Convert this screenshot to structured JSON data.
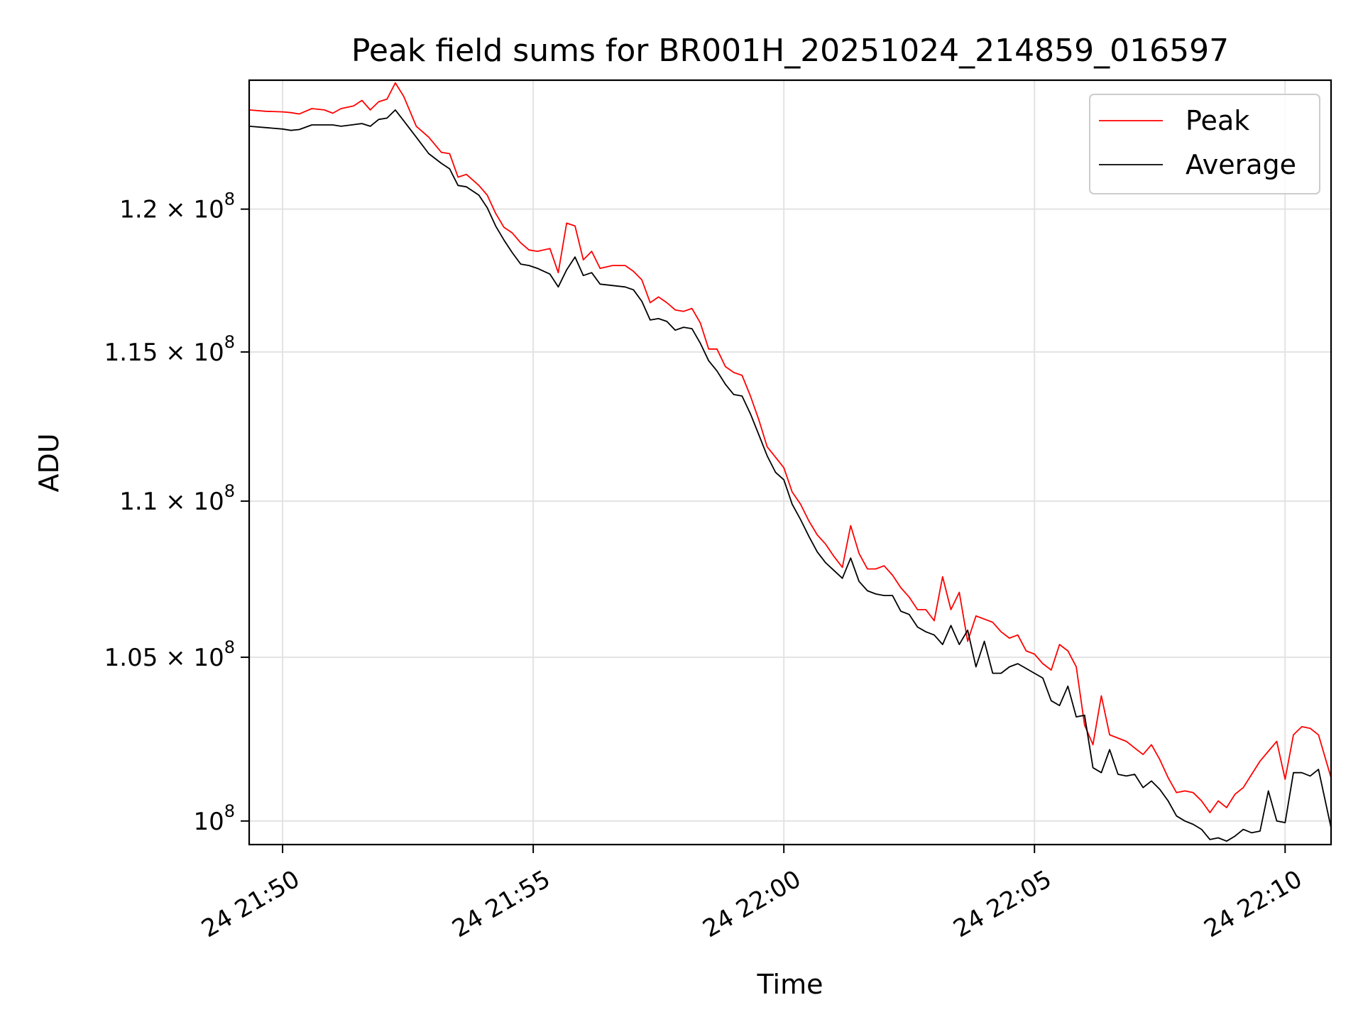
{
  "chart_data": {
    "type": "line",
    "title": "Peak field sums for BR001H_20251024_214859_016597",
    "xlabel": "Time",
    "ylabel": "ADU",
    "y_scale": "log",
    "xlim": [
      "24 21:49:20",
      "24 22:10:55"
    ],
    "ylim": [
      99300000,
      124700000
    ],
    "grid": true,
    "legend_position": "top-right",
    "x_ticks": [
      {
        "value": "24 21:50:00",
        "label": "24 21:50"
      },
      {
        "value": "24 21:55:00",
        "label": "24 21:55"
      },
      {
        "value": "24 22:00:00",
        "label": "24 22:00"
      },
      {
        "value": "24 22:05:00",
        "label": "24 22:05"
      },
      {
        "value": "24 22:10:00",
        "label": "24 22:10"
      }
    ],
    "y_ticks": [
      {
        "value": 100000000,
        "mantissa": "10",
        "exponent": "8"
      },
      {
        "value": 105000000,
        "mantissa": "1.05 × 10",
        "exponent": "8"
      },
      {
        "value": 110000000,
        "mantissa": "1.1 × 10",
        "exponent": "8"
      },
      {
        "value": 115000000,
        "mantissa": "1.15 × 10",
        "exponent": "8"
      },
      {
        "value": 120000000,
        "mantissa": "1.2 × 10",
        "exponent": "8"
      }
    ],
    "series": [
      {
        "name": "Peak",
        "color": "#ff0000",
        "points": [
          [
            "24 21:49:20",
            123600000
          ],
          [
            "24 21:49:40",
            123550000
          ],
          [
            "24 21:50:00",
            123530000
          ],
          [
            "24 21:50:10",
            123500000
          ],
          [
            "24 21:50:20",
            123450000
          ],
          [
            "24 21:50:35",
            123650000
          ],
          [
            "24 21:50:50",
            123600000
          ],
          [
            "24 21:51:00",
            123480000
          ],
          [
            "24 21:51:10",
            123650000
          ],
          [
            "24 21:51:25",
            123750000
          ],
          [
            "24 21:51:35",
            123950000
          ],
          [
            "24 21:51:45",
            123600000
          ],
          [
            "24 21:51:55",
            123900000
          ],
          [
            "24 21:52:05",
            124000000
          ],
          [
            "24 21:52:15",
            124600000
          ],
          [
            "24 21:52:25",
            124100000
          ],
          [
            "24 21:52:40",
            123000000
          ],
          [
            "24 21:52:55",
            122600000
          ],
          [
            "24 21:53:10",
            122050000
          ],
          [
            "24 21:53:20",
            122000000
          ],
          [
            "24 21:53:30",
            121150000
          ],
          [
            "24 21:53:40",
            121250000
          ],
          [
            "24 21:53:55",
            120850000
          ],
          [
            "24 21:54:05",
            120500000
          ],
          [
            "24 21:54:15",
            119850000
          ],
          [
            "24 21:54:25",
            119350000
          ],
          [
            "24 21:54:35",
            119150000
          ],
          [
            "24 21:54:45",
            118800000
          ],
          [
            "24 21:54:55",
            118550000
          ],
          [
            "24 21:55:05",
            118500000
          ],
          [
            "24 21:55:20",
            118600000
          ],
          [
            "24 21:55:30",
            117750000
          ],
          [
            "24 21:55:40",
            119500000
          ],
          [
            "24 21:55:50",
            119400000
          ],
          [
            "24 21:56:00",
            118200000
          ],
          [
            "24 21:56:10",
            118500000
          ],
          [
            "24 21:56:20",
            117900000
          ],
          [
            "24 21:56:35",
            118000000
          ],
          [
            "24 21:56:50",
            118000000
          ],
          [
            "24 21:57:00",
            117800000
          ],
          [
            "24 21:57:10",
            117500000
          ],
          [
            "24 21:57:20",
            116700000
          ],
          [
            "24 21:57:30",
            116900000
          ],
          [
            "24 21:57:40",
            116700000
          ],
          [
            "24 21:57:50",
            116450000
          ],
          [
            "24 21:58:00",
            116400000
          ],
          [
            "24 21:58:10",
            116500000
          ],
          [
            "24 21:58:20",
            116000000
          ],
          [
            "24 21:58:30",
            115100000
          ],
          [
            "24 21:58:40",
            115100000
          ],
          [
            "24 21:58:50",
            114500000
          ],
          [
            "24 21:59:00",
            114300000
          ],
          [
            "24 21:59:10",
            114200000
          ],
          [
            "24 21:59:20",
            113500000
          ],
          [
            "24 21:59:30",
            112700000
          ],
          [
            "24 21:59:40",
            111800000
          ],
          [
            "24 21:59:50",
            111450000
          ],
          [
            "24 22:00:00",
            111100000
          ],
          [
            "24 22:00:10",
            110300000
          ],
          [
            "24 22:00:20",
            109900000
          ],
          [
            "24 22:00:30",
            109350000
          ],
          [
            "24 22:00:40",
            108900000
          ],
          [
            "24 22:00:50",
            108600000
          ],
          [
            "24 22:01:00",
            108200000
          ],
          [
            "24 22:01:10",
            107850000
          ],
          [
            "24 22:01:20",
            109200000
          ],
          [
            "24 22:01:30",
            108300000
          ],
          [
            "24 22:01:40",
            107800000
          ],
          [
            "24 22:01:50",
            107800000
          ],
          [
            "24 22:02:00",
            107900000
          ],
          [
            "24 22:02:10",
            107600000
          ],
          [
            "24 22:02:20",
            107200000
          ],
          [
            "24 22:02:30",
            106900000
          ],
          [
            "24 22:02:40",
            106500000
          ],
          [
            "24 22:02:50",
            106500000
          ],
          [
            "24 22:03:00",
            106150000
          ],
          [
            "24 22:03:10",
            107550000
          ],
          [
            "24 22:03:20",
            106500000
          ],
          [
            "24 22:03:30",
            107050000
          ],
          [
            "24 22:03:40",
            105500000
          ],
          [
            "24 22:03:50",
            106300000
          ],
          [
            "24 22:04:00",
            106200000
          ],
          [
            "24 22:04:10",
            106100000
          ],
          [
            "24 22:04:20",
            105800000
          ],
          [
            "24 22:04:30",
            105600000
          ],
          [
            "24 22:04:40",
            105700000
          ],
          [
            "24 22:04:50",
            105200000
          ],
          [
            "24 22:05:00",
            105100000
          ],
          [
            "24 22:05:10",
            104800000
          ],
          [
            "24 22:05:20",
            104600000
          ],
          [
            "24 22:05:30",
            105400000
          ],
          [
            "24 22:05:40",
            105200000
          ],
          [
            "24 22:05:50",
            104700000
          ],
          [
            "24 22:06:00",
            102900000
          ],
          [
            "24 22:06:10",
            102300000
          ],
          [
            "24 22:06:20",
            103800000
          ],
          [
            "24 22:06:30",
            102600000
          ],
          [
            "24 22:06:40",
            102500000
          ],
          [
            "24 22:06:50",
            102400000
          ],
          [
            "24 22:07:00",
            102200000
          ],
          [
            "24 22:07:10",
            102000000
          ],
          [
            "24 22:07:20",
            102300000
          ],
          [
            "24 22:07:30",
            101850000
          ],
          [
            "24 22:07:40",
            101300000
          ],
          [
            "24 22:07:50",
            100850000
          ],
          [
            "24 22:08:00",
            100900000
          ],
          [
            "24 22:08:10",
            100850000
          ],
          [
            "24 22:08:20",
            100600000
          ],
          [
            "24 22:08:30",
            100250000
          ],
          [
            "24 22:08:40",
            100600000
          ],
          [
            "24 22:08:50",
            100400000
          ],
          [
            "24 22:09:00",
            100800000
          ],
          [
            "24 22:09:10",
            101000000
          ],
          [
            "24 22:09:20",
            101400000
          ],
          [
            "24 22:09:30",
            101800000
          ],
          [
            "24 22:09:40",
            102100000
          ],
          [
            "24 22:09:50",
            102400000
          ],
          [
            "24 22:10:00",
            101250000
          ],
          [
            "24 22:10:10",
            102600000
          ],
          [
            "24 22:10:20",
            102850000
          ],
          [
            "24 22:10:30",
            102800000
          ],
          [
            "24 22:10:40",
            102600000
          ],
          [
            "24 22:10:55",
            101300000
          ]
        ]
      },
      {
        "name": "Average",
        "color": "#000000",
        "points": [
          [
            "24 21:49:20",
            123000000
          ],
          [
            "24 21:49:40",
            122950000
          ],
          [
            "24 21:50:00",
            122900000
          ],
          [
            "24 21:50:10",
            122850000
          ],
          [
            "24 21:50:20",
            122880000
          ],
          [
            "24 21:50:35",
            123050000
          ],
          [
            "24 21:50:50",
            123050000
          ],
          [
            "24 21:51:00",
            123050000
          ],
          [
            "24 21:51:10",
            123000000
          ],
          [
            "24 21:51:25",
            123060000
          ],
          [
            "24 21:51:35",
            123100000
          ],
          [
            "24 21:51:45",
            123000000
          ],
          [
            "24 21:51:55",
            123250000
          ],
          [
            "24 21:52:05",
            123300000
          ],
          [
            "24 21:52:15",
            123600000
          ],
          [
            "24 21:52:25",
            123200000
          ],
          [
            "24 21:52:40",
            122600000
          ],
          [
            "24 21:52:55",
            122000000
          ],
          [
            "24 21:53:10",
            121650000
          ],
          [
            "24 21:53:20",
            121450000
          ],
          [
            "24 21:53:30",
            120850000
          ],
          [
            "24 21:53:40",
            120800000
          ],
          [
            "24 21:53:55",
            120500000
          ],
          [
            "24 21:54:05",
            120050000
          ],
          [
            "24 21:54:15",
            119400000
          ],
          [
            "24 21:54:25",
            118900000
          ],
          [
            "24 21:54:35",
            118450000
          ],
          [
            "24 21:54:45",
            118050000
          ],
          [
            "24 21:54:55",
            118000000
          ],
          [
            "24 21:55:05",
            117900000
          ],
          [
            "24 21:55:20",
            117700000
          ],
          [
            "24 21:55:30",
            117250000
          ],
          [
            "24 21:55:40",
            117850000
          ],
          [
            "24 21:55:50",
            118300000
          ],
          [
            "24 21:56:00",
            117650000
          ],
          [
            "24 21:56:10",
            117750000
          ],
          [
            "24 21:56:20",
            117350000
          ],
          [
            "24 21:56:35",
            117300000
          ],
          [
            "24 21:56:50",
            117250000
          ],
          [
            "24 21:57:00",
            117150000
          ],
          [
            "24 21:57:10",
            116750000
          ],
          [
            "24 21:57:20",
            116100000
          ],
          [
            "24 21:57:30",
            116150000
          ],
          [
            "24 21:57:40",
            116050000
          ],
          [
            "24 21:57:50",
            115750000
          ],
          [
            "24 21:58:00",
            115850000
          ],
          [
            "24 21:58:10",
            115800000
          ],
          [
            "24 21:58:20",
            115300000
          ],
          [
            "24 21:58:30",
            114700000
          ],
          [
            "24 21:58:40",
            114350000
          ],
          [
            "24 21:58:50",
            113900000
          ],
          [
            "24 21:59:00",
            113550000
          ],
          [
            "24 21:59:10",
            113500000
          ],
          [
            "24 21:59:20",
            112900000
          ],
          [
            "24 21:59:30",
            112200000
          ],
          [
            "24 21:59:40",
            111500000
          ],
          [
            "24 21:59:50",
            110950000
          ],
          [
            "24 22:00:00",
            110700000
          ],
          [
            "24 22:00:10",
            109900000
          ],
          [
            "24 22:00:20",
            109400000
          ],
          [
            "24 22:00:30",
            108850000
          ],
          [
            "24 22:00:40",
            108350000
          ],
          [
            "24 22:00:50",
            108000000
          ],
          [
            "24 22:01:00",
            107750000
          ],
          [
            "24 22:01:10",
            107500000
          ],
          [
            "24 22:01:20",
            108150000
          ],
          [
            "24 22:01:30",
            107400000
          ],
          [
            "24 22:01:40",
            107100000
          ],
          [
            "24 22:01:50",
            107000000
          ],
          [
            "24 22:02:00",
            106950000
          ],
          [
            "24 22:02:10",
            106950000
          ],
          [
            "24 22:02:20",
            106450000
          ],
          [
            "24 22:02:30",
            106350000
          ],
          [
            "24 22:02:40",
            105950000
          ],
          [
            "24 22:02:50",
            105800000
          ],
          [
            "24 22:03:00",
            105700000
          ],
          [
            "24 22:03:10",
            105400000
          ],
          [
            "24 22:03:20",
            106000000
          ],
          [
            "24 22:03:30",
            105400000
          ],
          [
            "24 22:03:40",
            105850000
          ],
          [
            "24 22:03:50",
            104700000
          ],
          [
            "24 22:04:00",
            105500000
          ],
          [
            "24 22:04:10",
            104500000
          ],
          [
            "24 22:04:20",
            104500000
          ],
          [
            "24 22:04:30",
            104700000
          ],
          [
            "24 22:04:40",
            104800000
          ],
          [
            "24 22:04:50",
            104650000
          ],
          [
            "24 22:05:00",
            104500000
          ],
          [
            "24 22:05:10",
            104350000
          ],
          [
            "24 22:05:20",
            103650000
          ],
          [
            "24 22:05:30",
            103500000
          ],
          [
            "24 22:05:40",
            104100000
          ],
          [
            "24 22:05:50",
            103150000
          ],
          [
            "24 22:06:00",
            103200000
          ],
          [
            "24 22:06:10",
            101600000
          ],
          [
            "24 22:06:20",
            101450000
          ],
          [
            "24 22:06:30",
            102150000
          ],
          [
            "24 22:06:40",
            101400000
          ],
          [
            "24 22:06:50",
            101350000
          ],
          [
            "24 22:07:00",
            101400000
          ],
          [
            "24 22:07:10",
            101000000
          ],
          [
            "24 22:07:20",
            101200000
          ],
          [
            "24 22:07:30",
            100950000
          ],
          [
            "24 22:07:40",
            100600000
          ],
          [
            "24 22:07:50",
            100150000
          ],
          [
            "24 22:08:00",
            100000000
          ],
          [
            "24 22:08:10",
            99900000
          ],
          [
            "24 22:08:20",
            99750000
          ],
          [
            "24 22:08:30",
            99450000
          ],
          [
            "24 22:08:40",
            99500000
          ],
          [
            "24 22:08:50",
            99400000
          ],
          [
            "24 22:09:00",
            99550000
          ],
          [
            "24 22:09:10",
            99750000
          ],
          [
            "24 22:09:20",
            99650000
          ],
          [
            "24 22:09:30",
            99700000
          ],
          [
            "24 22:09:40",
            100900000
          ],
          [
            "24 22:09:50",
            100000000
          ],
          [
            "24 22:10:00",
            99950000
          ],
          [
            "24 22:10:10",
            101450000
          ],
          [
            "24 22:10:20",
            101450000
          ],
          [
            "24 22:10:30",
            101350000
          ],
          [
            "24 22:10:40",
            101550000
          ],
          [
            "24 22:10:55",
            99800000
          ]
        ]
      }
    ]
  }
}
